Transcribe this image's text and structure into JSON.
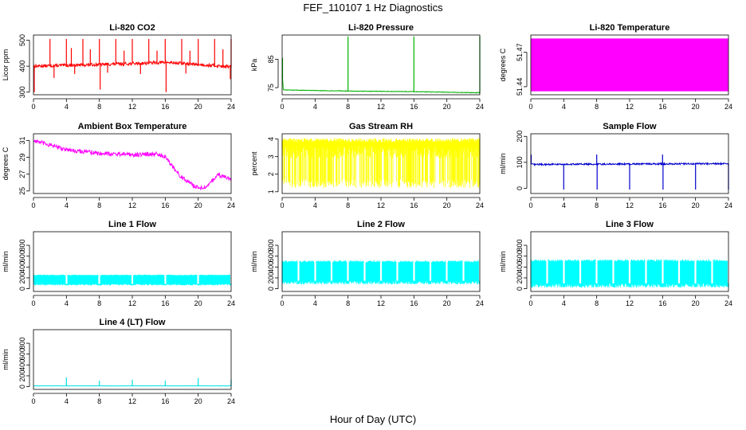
{
  "figure": {
    "title": "FEF_110107  1 Hz Diagnostics",
    "xlabel": "Hour of Day (UTC)"
  },
  "chart_data": [
    {
      "type": "line",
      "title": "Li-820 CO2",
      "xlabel": "",
      "ylabel": "Licor ppm",
      "color": "#ff0000",
      "xlim": [
        0,
        24
      ],
      "ylim": [
        290,
        520
      ],
      "xticks": [
        0,
        4,
        8,
        12,
        16,
        20,
        24
      ],
      "yticks": [
        300,
        400,
        500
      ],
      "series": [
        {
          "base": 405,
          "trend": [
            [
              0,
              400
            ],
            [
              12,
              410
            ],
            [
              16,
              415
            ],
            [
              24,
              398
            ]
          ],
          "noise": 6,
          "spikes": [
            [
              0.1,
              300
            ],
            [
              2,
              505
            ],
            [
              2.5,
              355
            ],
            [
              4,
              505
            ],
            [
              4.6,
              470
            ],
            [
              6,
              505
            ],
            [
              6.9,
              465
            ],
            [
              8,
              505
            ],
            [
              8.1,
              310
            ],
            [
              10,
              505
            ],
            [
              11,
              460
            ],
            [
              12,
              505
            ],
            [
              14,
              505
            ],
            [
              15,
              460
            ],
            [
              16,
              505
            ],
            [
              16.1,
              300
            ],
            [
              18,
              505
            ],
            [
              19,
              460
            ],
            [
              20,
              505
            ],
            [
              22,
              505
            ],
            [
              23,
              465
            ],
            [
              24,
              505
            ],
            [
              23.9,
              350
            ],
            [
              5,
              370
            ],
            [
              9,
              375
            ],
            [
              13,
              370
            ],
            [
              18.5,
              372
            ]
          ]
        }
      ]
    },
    {
      "type": "line",
      "title": "Li-820 Pressure",
      "xlabel": "",
      "ylabel": "kPa",
      "color": "#00b000",
      "xlim": [
        0,
        24
      ],
      "ylim": [
        72.5,
        93.5
      ],
      "xticks": [
        0,
        4,
        8,
        12,
        16,
        20,
        24
      ],
      "yticks": [
        75,
        85
      ],
      "series": [
        {
          "base": 74,
          "trend": [
            [
              0,
              80
            ],
            [
              0.15,
              74.2
            ],
            [
              8,
              73.8
            ],
            [
              16,
              73.6
            ],
            [
              24,
              73.2
            ]
          ],
          "noise": 0.1,
          "spikes": [
            [
              0.05,
              85.5
            ],
            [
              8,
              93
            ],
            [
              16,
              93
            ],
            [
              24,
              93
            ]
          ]
        }
      ]
    },
    {
      "type": "area",
      "title": "Li-820 Temperature",
      "xlabel": "",
      "ylabel": "degrees C",
      "color": "#ff00ff",
      "xlim": [
        0,
        24
      ],
      "ylim": [
        51.433,
        51.485
      ],
      "xticks": [
        0,
        4,
        8,
        12,
        16,
        20,
        24
      ],
      "yticks": [
        51.44,
        51.47
      ],
      "series": [
        {
          "min": 51.436,
          "max": 51.482
        }
      ]
    },
    {
      "type": "line",
      "title": "Ambient Box Temperature",
      "xlabel": "",
      "ylabel": "degrees C",
      "color": "#ff00ff",
      "xlim": [
        0,
        24
      ],
      "ylim": [
        24.7,
        31.8
      ],
      "xticks": [
        0,
        4,
        8,
        12,
        16,
        20,
        24
      ],
      "yticks": [
        25,
        27,
        29,
        31
      ],
      "series": [
        {
          "base": 29,
          "trend": [
            [
              0,
              31
            ],
            [
              4,
              29.9
            ],
            [
              8,
              29.5
            ],
            [
              12,
              29.3
            ],
            [
              15,
              29.4
            ],
            [
              16,
              29
            ],
            [
              18,
              26.6
            ],
            [
              20,
              25.3
            ],
            [
              21,
              25.6
            ],
            [
              22.5,
              26.9
            ],
            [
              24,
              26.4
            ]
          ],
          "noise": 0.25,
          "spikes": []
        }
      ]
    },
    {
      "type": "line",
      "title": "Gas Stream RH",
      "xlabel": "",
      "ylabel": "percent",
      "color": "#ffff00",
      "xlim": [
        0,
        24
      ],
      "ylim": [
        0.9,
        4.3
      ],
      "xticks": [
        0,
        4,
        8,
        12,
        16,
        20,
        24
      ],
      "yticks": [
        1.0,
        2.0,
        3.0,
        4.0
      ],
      "series": [
        {
          "min": 1.2,
          "max": 4.05,
          "band_low": 3.6
        }
      ]
    },
    {
      "type": "line",
      "title": "Sample Flow",
      "xlabel": "",
      "ylabel": "ml/min",
      "color": "#0000cc",
      "xlim": [
        0,
        24
      ],
      "ylim": [
        -20,
        210
      ],
      "xticks": [
        0,
        4,
        8,
        12,
        16,
        20,
        24
      ],
      "yticks": [
        0,
        100,
        200
      ],
      "series": [
        {
          "base": 92,
          "trend": [
            [
              0,
              92
            ],
            [
              24,
              95
            ]
          ],
          "noise": 3,
          "spikes": [
            [
              0.05,
              130
            ],
            [
              4,
              -5
            ],
            [
              8,
              130
            ],
            [
              8.05,
              -5
            ],
            [
              12,
              -5
            ],
            [
              16,
              130
            ],
            [
              16.05,
              -5
            ],
            [
              20,
              -5
            ],
            [
              24,
              -5
            ]
          ]
        }
      ]
    },
    {
      "type": "line",
      "title": "Line 1 Flow",
      "xlabel": "",
      "ylabel": "ml/min",
      "color": "#00ffff",
      "xlim": [
        0,
        24
      ],
      "ylim": [
        -50,
        1050
      ],
      "xticks": [
        0,
        4,
        8,
        12,
        16,
        20,
        24
      ],
      "yticks": [
        0,
        200,
        400,
        600,
        800
      ],
      "series": [
        {
          "min": 60,
          "max": 260,
          "gaps": [
            4,
            8,
            12,
            16,
            20,
            24
          ]
        }
      ]
    },
    {
      "type": "line",
      "title": "Line 2 Flow",
      "xlabel": "",
      "ylabel": "ml/min",
      "color": "#00ffff",
      "xlim": [
        0,
        24
      ],
      "ylim": [
        -50,
        1050
      ],
      "xticks": [
        0,
        4,
        8,
        12,
        16,
        20,
        24
      ],
      "yticks": [
        0,
        200,
        400,
        600,
        800
      ],
      "series": [
        {
          "min": 80,
          "max": 520,
          "gaps": [
            2,
            4,
            6,
            8,
            10,
            12,
            14,
            16,
            18,
            20,
            22,
            24
          ]
        }
      ]
    },
    {
      "type": "line",
      "title": "Line 3 Flow",
      "xlabel": "",
      "ylabel": "ml/min",
      "color": "#00ffff",
      "xlim": [
        0,
        24
      ],
      "ylim": [
        -50,
        1050
      ],
      "xticks": [
        0,
        4,
        8,
        12,
        16,
        20,
        24
      ],
      "yticks": [
        0,
        200,
        400,
        600,
        800
      ],
      "series": [
        {
          "min": 20,
          "max": 540,
          "gaps": [
            2,
            4,
            6,
            8,
            10,
            12,
            14,
            16,
            18,
            20,
            22,
            24
          ]
        }
      ]
    },
    {
      "type": "line",
      "title": "Line 4 (LT) Flow",
      "xlabel": "",
      "ylabel": "ml/min",
      "color": "#00e0e0",
      "xlim": [
        0,
        24
      ],
      "ylim": [
        -50,
        1050
      ],
      "xticks": [
        0,
        4,
        8,
        12,
        16,
        20,
        24
      ],
      "yticks": [
        0,
        200,
        400,
        600,
        800
      ],
      "series": [
        {
          "base": 15,
          "trend": [
            [
              0,
              15
            ],
            [
              24,
              15
            ]
          ],
          "noise": 2,
          "spikes": [
            [
              4,
              170
            ],
            [
              8,
              110
            ],
            [
              12,
              130
            ],
            [
              16,
              110
            ],
            [
              20,
              160
            ],
            [
              24,
              130
            ]
          ]
        }
      ]
    }
  ]
}
